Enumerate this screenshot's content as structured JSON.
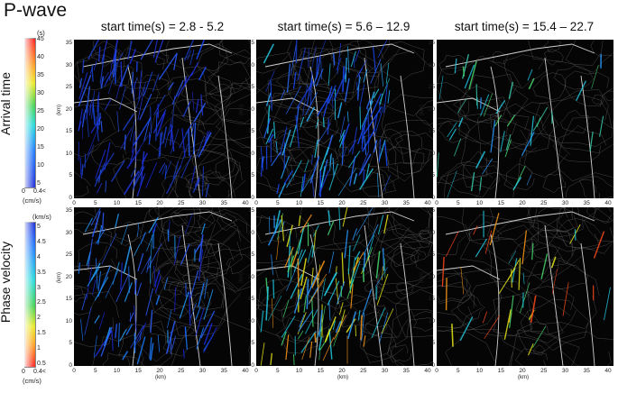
{
  "title": "P-wave",
  "columns": [
    {
      "label": "start time(s) = 2.8 - 5.2"
    },
    {
      "label": "start time(s) = 5.6 – 12.9"
    },
    {
      "label": "start time(s) = 15.4 – 22.7"
    }
  ],
  "rows": [
    {
      "label": "Arrival time"
    },
    {
      "label": "Phase velocity"
    }
  ],
  "colorbars": {
    "arrival": {
      "unit_top": "(s)",
      "ticks": [
        "45",
        "40",
        "35",
        "30",
        "25",
        "20",
        "15",
        "10",
        "5"
      ],
      "bottom_left": "0",
      "bottom_right": "0.4<",
      "unit_bottom": "(cm/s)"
    },
    "velocity": {
      "unit_top": "(km/s)",
      "ticks": [
        "5",
        "4.5",
        "4",
        "3.5",
        "3",
        "2.5",
        "2",
        "1.5",
        "1",
        "0.5"
      ],
      "bottom_left": "0",
      "bottom_right": "0.4<",
      "unit_bottom": "(cm/s)"
    }
  },
  "axes": {
    "y_ticks": [
      "35",
      "30",
      "25",
      "20",
      "15",
      "10",
      "5",
      "0"
    ],
    "x_ticks": [
      "0",
      "5",
      "10",
      "15",
      "20",
      "25",
      "30",
      "35",
      "40"
    ],
    "unit": "(km)"
  }
}
